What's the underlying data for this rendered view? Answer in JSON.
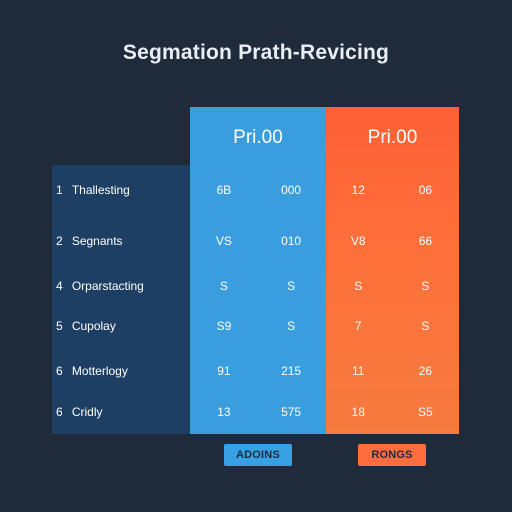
{
  "title": "Segmation Prath-Revicing",
  "plans": [
    {
      "price": "Pri.00",
      "button_label": "ADOINS"
    },
    {
      "price": "Pri.00",
      "button_label": "RONGS"
    }
  ],
  "rows": [
    {
      "index": "1",
      "label": "Thallesting",
      "values": [
        "6B",
        "000",
        "12",
        "06"
      ]
    },
    {
      "index": "2",
      "label": "Segnants",
      "values": [
        "VS",
        "010",
        "V8",
        "66"
      ]
    },
    {
      "index": "4",
      "label": "Orparstacting",
      "values": [
        "S",
        "S",
        "S",
        "S"
      ]
    },
    {
      "index": "5",
      "label": "Cupolay",
      "values": [
        "S9",
        "S",
        "7",
        "S"
      ]
    },
    {
      "index": "6",
      "label": "Motterlogy",
      "values": [
        "91",
        "215",
        "11",
        "26"
      ]
    },
    {
      "index": "6",
      "label": "Cridly",
      "values": [
        "13",
        "575",
        "18",
        "S5"
      ]
    }
  ],
  "colors": {
    "background": "#1f2a3a",
    "left_panel": "#1d3f64",
    "blue_plan": "#3a9ddd",
    "orange_plan": "#ff6a39",
    "blue_button": "#36a1e4",
    "orange_button": "#ff6d3f"
  }
}
